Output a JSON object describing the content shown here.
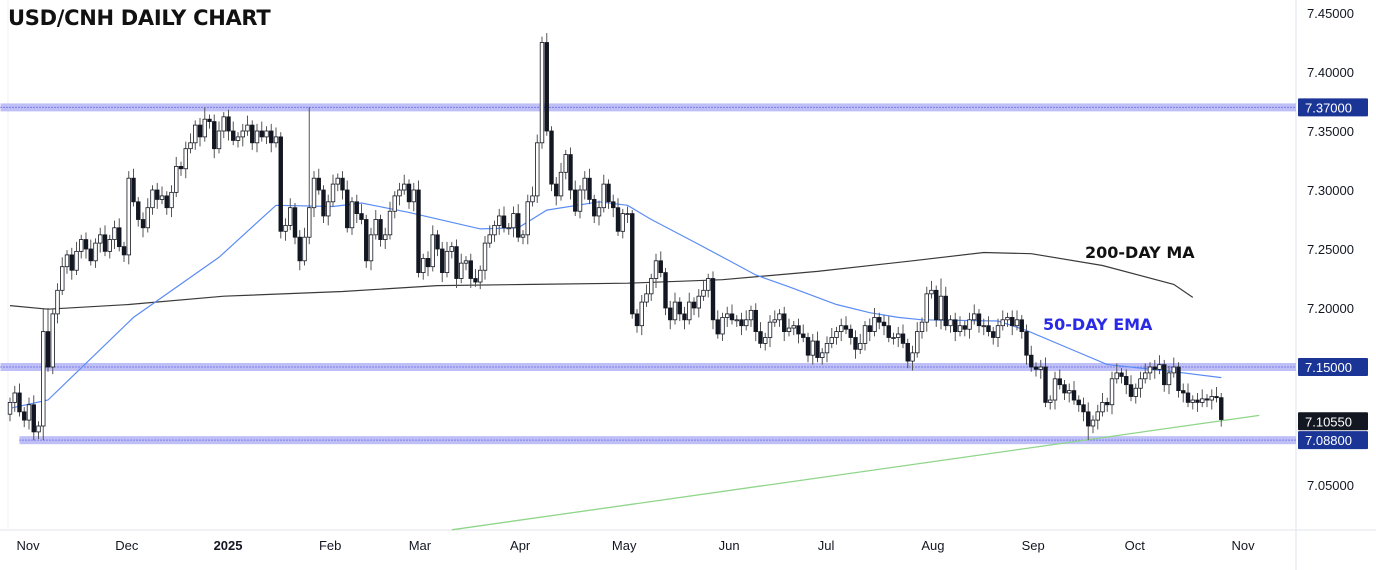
{
  "title": "USD/CNH DAILY CHART",
  "annotations": {
    "ma200": "200-DAY MA",
    "ema50": "50-DAY EMA"
  },
  "colors": {
    "level_band": "#b4b4f7",
    "level_line": "#3b3bd6",
    "label_blue": "#1a3596",
    "label_dark": "#131722",
    "ema": "#5b8cf5",
    "ma": "#3a3a3a",
    "trend": "#8fd68a",
    "candle": "#131722"
  },
  "chart_data": {
    "type": "candlestick",
    "title": "USD/CNH DAILY CHART",
    "ylim": [
      7.0,
      7.45
    ],
    "y_ticks": [
      "7.45000",
      "7.40000",
      "7.35000",
      "7.30000",
      "7.25000",
      "7.20000",
      "7.05000"
    ],
    "y_tick_values": [
      7.45,
      7.4,
      7.35,
      7.3,
      7.25,
      7.2,
      7.05
    ],
    "x_ticks": [
      {
        "label": "Nov",
        "index": 3.8
      },
      {
        "label": "Dec",
        "index": 24.6
      },
      {
        "label": "2025",
        "index": 45.9,
        "bold": true
      },
      {
        "label": "Feb",
        "index": 67.4
      },
      {
        "label": "Mar",
        "index": 86.3
      },
      {
        "label": "Apr",
        "index": 107.4
      },
      {
        "label": "May",
        "index": 129.3
      },
      {
        "label": "Jun",
        "index": 151.4
      },
      {
        "label": "Jul",
        "index": 171.8
      },
      {
        "label": "Aug",
        "index": 194.3
      },
      {
        "label": "Sep",
        "index": 215.4
      },
      {
        "label": "Oct",
        "index": 236.8
      },
      {
        "label": "Nov",
        "index": 259.6
      }
    ],
    "first_open": 7.11,
    "close": [
      7.12,
      7.128,
      7.112,
      7.105,
      7.118,
      7.095,
      7.1,
      7.18,
      7.15,
      7.195,
      7.215,
      7.235,
      7.245,
      7.232,
      7.248,
      7.258,
      7.25,
      7.24,
      7.255,
      7.262,
      7.248,
      7.258,
      7.268,
      7.252,
      7.245,
      7.31,
      7.29,
      7.275,
      7.268,
      7.285,
      7.3,
      7.292,
      7.295,
      7.285,
      7.298,
      7.32,
      7.318,
      7.335,
      7.34,
      7.355,
      7.345,
      7.36,
      7.358,
      7.335,
      7.35,
      7.362,
      7.35,
      7.342,
      7.345,
      7.35,
      7.355,
      7.34,
      7.35,
      7.345,
      7.35,
      7.34,
      7.345,
      7.265,
      7.27,
      7.285,
      7.26,
      7.24,
      7.26,
      7.285,
      7.31,
      7.3,
      7.278,
      7.29,
      7.305,
      7.31,
      7.3,
      7.268,
      7.29,
      7.28,
      7.275,
      7.24,
      7.262,
      7.275,
      7.258,
      7.262,
      7.282,
      7.295,
      7.3,
      7.305,
      7.29,
      7.3,
      7.23,
      7.242,
      7.235,
      7.262,
      7.25,
      7.23,
      7.248,
      7.252,
      7.225,
      7.238,
      7.24,
      7.225,
      7.222,
      7.232,
      7.255,
      7.262,
      7.27,
      7.278,
      7.268,
      7.268,
      7.28,
      7.26,
      7.262,
      7.29,
      7.295,
      7.34,
      7.425,
      7.35,
      7.305,
      7.295,
      7.315,
      7.33,
      7.3,
      7.282,
      7.3,
      7.31,
      7.292,
      7.278,
      7.285,
      7.305,
      7.29,
      7.285,
      7.265,
      7.28,
      7.28,
      7.195,
      7.185,
      7.205,
      7.212,
      7.225,
      7.24,
      7.23,
      7.2,
      7.19,
      7.205,
      7.195,
      7.19,
      7.205,
      7.2,
      7.21,
      7.215,
      7.225,
      7.19,
      7.178,
      7.192,
      7.195,
      7.19,
      7.19,
      7.185,
      7.19,
      7.198,
      7.18,
      7.17,
      7.175,
      7.188,
      7.19,
      7.195,
      7.18,
      7.183,
      7.185,
      7.178,
      7.175,
      7.16,
      7.172,
      7.158,
      7.162,
      7.17,
      7.175,
      7.18,
      7.185,
      7.182,
      7.175,
      7.165,
      7.17,
      7.185,
      7.18,
      7.192,
      7.188,
      7.185,
      7.175,
      7.175,
      7.178,
      7.17,
      7.155,
      7.162,
      7.18,
      7.188,
      7.212,
      7.215,
      7.19,
      7.21,
      7.185,
      7.19,
      7.18,
      7.185,
      7.182,
      7.19,
      7.195,
      7.185,
      7.185,
      7.18,
      7.175,
      7.185,
      7.19,
      7.192,
      7.185,
      7.19,
      7.18,
      7.16,
      7.15,
      7.148,
      7.15,
      7.12,
      7.122,
      7.14,
      7.135,
      7.128,
      7.13,
      7.122,
      7.118,
      7.112,
      7.1,
      7.105,
      7.112,
      7.12,
      7.118,
      7.14,
      7.145,
      7.142,
      7.135,
      7.125,
      7.132,
      7.14,
      7.145,
      7.15,
      7.148,
      7.152,
      7.135,
      7.145,
      7.15,
      7.13,
      7.128,
      7.12,
      7.122,
      7.12,
      7.123,
      7.122,
      7.125,
      7.124,
      7.1055
    ],
    "wick_overrides": {
      "5": {
        "l": 7.088
      },
      "7": {
        "h": 7.2,
        "l": 7.088
      },
      "8": {
        "h": 7.2
      },
      "41": {
        "h": 7.37
      },
      "63": {
        "h": 7.37
      },
      "111": {
        "h": 7.347
      },
      "112": {
        "h": 7.43,
        "l": 7.335
      },
      "131": {
        "h": 7.283
      },
      "196": {
        "h": 7.225
      },
      "227": {
        "l": 7.088
      }
    },
    "series": [
      {
        "name": "200-DAY MA",
        "points": [
          [
            0,
            7.202
          ],
          [
            8,
            7.199
          ],
          [
            25,
            7.203
          ],
          [
            45,
            7.21
          ],
          [
            70,
            7.214
          ],
          [
            90,
            7.219
          ],
          [
            110,
            7.22
          ],
          [
            130,
            7.221
          ],
          [
            150,
            7.224
          ],
          [
            170,
            7.231
          ],
          [
            190,
            7.24
          ],
          [
            205,
            7.247
          ],
          [
            215,
            7.246
          ],
          [
            230,
            7.236
          ],
          [
            245,
            7.22
          ],
          [
            249,
            7.209
          ]
        ]
      },
      {
        "name": "50-DAY EMA",
        "points": [
          [
            0,
            7.115
          ],
          [
            8,
            7.122
          ],
          [
            26,
            7.192
          ],
          [
            44,
            7.243
          ],
          [
            56,
            7.287
          ],
          [
            68,
            7.286
          ],
          [
            74,
            7.289
          ],
          [
            84,
            7.281
          ],
          [
            99,
            7.267
          ],
          [
            107,
            7.268
          ],
          [
            113,
            7.283
          ],
          [
            124,
            7.29
          ],
          [
            130,
            7.287
          ],
          [
            135,
            7.275
          ],
          [
            144,
            7.256
          ],
          [
            151,
            7.241
          ],
          [
            157,
            7.228
          ],
          [
            164,
            7.218
          ],
          [
            174,
            7.203
          ],
          [
            181,
            7.196
          ],
          [
            187,
            7.192
          ],
          [
            192,
            7.19
          ],
          [
            208,
            7.189
          ],
          [
            214,
            7.181
          ],
          [
            224,
            7.164
          ],
          [
            231,
            7.152
          ],
          [
            245,
            7.146
          ],
          [
            255,
            7.141
          ]
        ]
      },
      {
        "name": "trendline",
        "points": [
          [
            93,
            7.012
          ],
          [
            263,
            7.109
          ]
        ]
      }
    ],
    "levels": [
      {
        "value": 7.37,
        "label": "7.37000",
        "start_index": -2
      },
      {
        "value": 7.15,
        "label": "7.15000",
        "start_index": -2
      },
      {
        "value": 7.088,
        "label": "7.08800",
        "start_index": 2
      }
    ],
    "last_price": {
      "value": 7.1055,
      "label": "7.10550"
    }
  }
}
